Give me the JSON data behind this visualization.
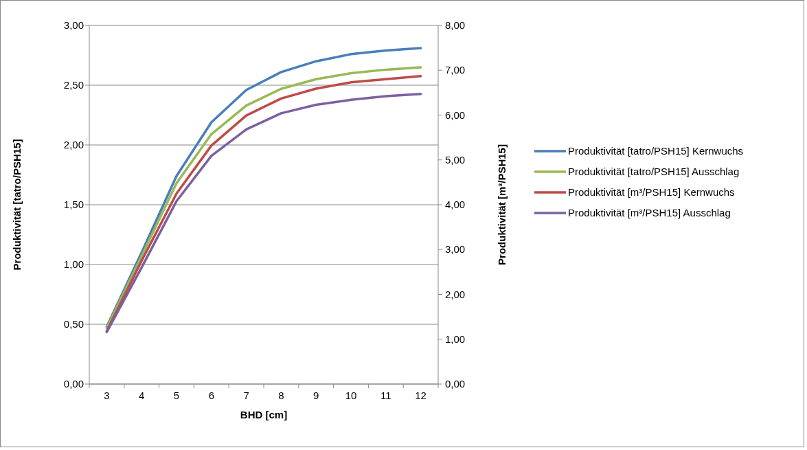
{
  "chart_data": {
    "type": "line",
    "xlabel": "BHD [cm]",
    "ylabel": "Produktivität [tatro/PSH15]",
    "y2label": "Produktivität [m³/PSH15]",
    "categories": [
      "3",
      "4",
      "5",
      "6",
      "7",
      "8",
      "9",
      "10",
      "11",
      "12"
    ],
    "series": [
      {
        "name": "Produktivität [tatro/PSH15] Kernwuchs",
        "color": "#4a7ebb",
        "values": [
          0.48,
          1.1,
          1.74,
          2.19,
          2.46,
          2.61,
          2.7,
          2.76,
          2.79,
          2.81
        ]
      },
      {
        "name": "Produktivität [tatro/PSH15] Ausschlag",
        "color": "#98b954",
        "values": [
          0.47,
          1.07,
          1.68,
          2.09,
          2.33,
          2.47,
          2.55,
          2.6,
          2.63,
          2.65
        ]
      },
      {
        "name": "Produktivität [m³/PSH15] Kernwuchs",
        "color": "#be4b48",
        "axis": "y2",
        "values": [
          1.18,
          2.75,
          4.25,
          5.32,
          5.99,
          6.37,
          6.59,
          6.73,
          6.8,
          6.87
        ]
      },
      {
        "name": "Produktivität [m³/PSH15] Ausschlag",
        "color": "#7d60a0",
        "axis": "y2",
        "values": [
          1.16,
          2.6,
          4.08,
          5.09,
          5.68,
          6.04,
          6.23,
          6.34,
          6.42,
          6.47
        ]
      }
    ],
    "ylim": [
      0,
      3
    ],
    "yticks": [
      {
        "value": 0,
        "label": "0,00"
      },
      {
        "value": 0.5,
        "label": "0,50"
      },
      {
        "value": 1,
        "label": "1,00"
      },
      {
        "value": 1.5,
        "label": "1,50"
      },
      {
        "value": 2,
        "label": "2,00"
      },
      {
        "value": 2.5,
        "label": "2,50"
      },
      {
        "value": 3,
        "label": "3,00"
      }
    ],
    "y2lim": [
      0,
      8
    ],
    "y2ticks": [
      {
        "value": 0,
        "label": "0,00"
      },
      {
        "value": 1,
        "label": "1,00"
      },
      {
        "value": 2,
        "label": "2,00"
      },
      {
        "value": 3,
        "label": "3,00"
      },
      {
        "value": 4,
        "label": "4,00"
      },
      {
        "value": 5,
        "label": "5,00"
      },
      {
        "value": 6,
        "label": "6,00"
      },
      {
        "value": 7,
        "label": "7,00"
      },
      {
        "value": 8,
        "label": "8,00"
      }
    ],
    "grid": "y",
    "legend": "right",
    "marker": "none",
    "line_style": "solid"
  }
}
